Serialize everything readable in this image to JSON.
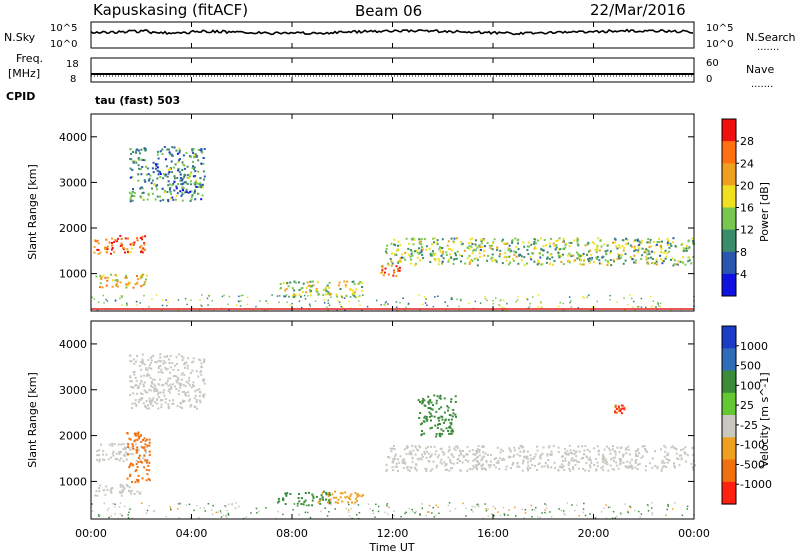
{
  "header": {
    "station": "Kapuskasing (fitACF)",
    "beam": "Beam 06",
    "date": "22/Mar/2016"
  },
  "status_panels": {
    "nsky_label": "N.Sky",
    "nsky_ticks": [
      "10^5",
      "10^0"
    ],
    "nsearch_label": "N.Search",
    "nsearch_ticks": [
      "10^5",
      "10^0"
    ],
    "freq_label": "Freq.",
    "freq_units": "[MHz]",
    "freq_ticks": [
      "18",
      "8"
    ],
    "nave_label": "Nave",
    "nave_ticks": [
      "60",
      "0"
    ],
    "cpid_label": "CPID",
    "cpid_value": "tau (fast) 503",
    "dots": "......."
  },
  "colors": {
    "power": [
      "#1010e0",
      "#2a56b0",
      "#3a8c6a",
      "#78c850",
      "#f0e020",
      "#f0a020",
      "#ff7010",
      "#f01010"
    ],
    "velocity": [
      "#1c3cc8",
      "#2f6db8",
      "#3a8c3a",
      "#64c832",
      "#c8c8c0",
      "#f0a020",
      "#f07010",
      "#ff2010"
    ]
  },
  "chart_data": [
    {
      "type": "heatmap",
      "panel": "power",
      "ylabel": "Slant Range [km]",
      "colorbar_label": "Power [dB]",
      "colorbar_ticks": [
        "28",
        "24",
        "20",
        "16",
        "12",
        "8",
        "4"
      ],
      "colorbar_range": [
        0,
        32
      ],
      "xlim_hours": [
        0,
        24
      ],
      "ylim": [
        180,
        4500
      ],
      "y_ticks": [
        "1000",
        "2000",
        "3000",
        "4000"
      ],
      "echo_regions": [
        {
          "t_start_h": 0.1,
          "t_end_h": 2.2,
          "range_km": [
            1450,
            1850
          ],
          "power_db": 26
        },
        {
          "t_start_h": 0.1,
          "t_end_h": 2.2,
          "range_km": [
            700,
            1000
          ],
          "power_db": 20
        },
        {
          "t_start_h": 1.5,
          "t_end_h": 4.5,
          "range_km": [
            2600,
            3800
          ],
          "power_db": 10
        },
        {
          "t_start_h": 11.7,
          "t_end_h": 24.0,
          "range_km": [
            1200,
            1800
          ],
          "power_db": 14
        },
        {
          "t_start_h": 11.5,
          "t_end_h": 12.3,
          "range_km": [
            950,
            1200
          ],
          "power_db": 26
        },
        {
          "t_start_h": 7.4,
          "t_end_h": 10.8,
          "range_km": [
            500,
            850
          ],
          "power_db": 16
        }
      ]
    },
    {
      "type": "heatmap",
      "panel": "velocity",
      "ylabel": "Slant Range [km]",
      "colorbar_label": "Velocity [m s^-1]",
      "colorbar_ticks": [
        "1000",
        "500",
        "100",
        "25",
        "-25",
        "-100",
        "-500",
        "-1000"
      ],
      "xlim_hours": [
        0,
        24
      ],
      "ylim": [
        180,
        4500
      ],
      "y_ticks": [
        "1000",
        "2000",
        "3000",
        "4000"
      ],
      "xlabel": "Time UT",
      "x_ticks": [
        "00:00",
        "04:00",
        "08:00",
        "12:00",
        "16:00",
        "20:00",
        "00:00"
      ],
      "echo_regions": [
        {
          "t_start_h": 0.1,
          "t_end_h": 2.2,
          "range_km": [
            1450,
            1850
          ],
          "velocity": 0
        },
        {
          "t_start_h": 1.4,
          "t_end_h": 2.3,
          "range_km": [
            1000,
            2100
          ],
          "velocity": -300
        },
        {
          "t_start_h": 0.1,
          "t_end_h": 2.0,
          "range_km": [
            700,
            950
          ],
          "velocity": 0
        },
        {
          "t_start_h": 1.5,
          "t_end_h": 4.5,
          "range_km": [
            2600,
            3800
          ],
          "velocity": 0
        },
        {
          "t_start_h": 11.7,
          "t_end_h": 24.0,
          "range_km": [
            1250,
            1800
          ],
          "velocity": 0
        },
        {
          "t_start_h": 7.4,
          "t_end_h": 9.5,
          "range_km": [
            500,
            800
          ],
          "velocity": 80
        },
        {
          "t_start_h": 9.0,
          "t_end_h": 10.8,
          "range_km": [
            550,
            800
          ],
          "velocity": -60
        },
        {
          "t_start_h": 13.0,
          "t_end_h": 14.5,
          "range_km": [
            2000,
            2900
          ],
          "velocity": 80
        },
        {
          "t_start_h": 20.8,
          "t_end_h": 21.2,
          "range_km": [
            2500,
            2700
          ],
          "velocity": -500
        }
      ]
    }
  ]
}
